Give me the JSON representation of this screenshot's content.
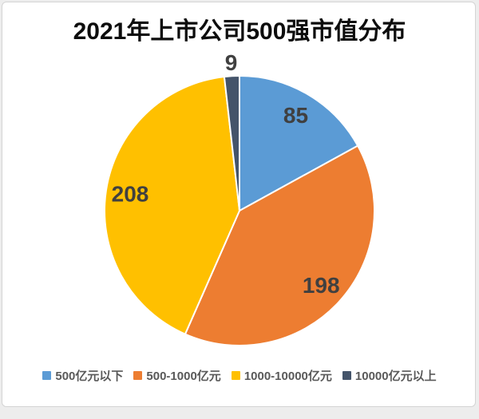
{
  "title": "2021年上市公司500强市值分布",
  "chart_data": {
    "type": "pie",
    "title": "2021年上市公司500强市值分布",
    "total": 500,
    "start_angle_deg": 0,
    "direction": "clockwise",
    "legend_position": "bottom",
    "data_labels_shown": true,
    "slices": [
      {
        "label": "500亿元以下",
        "value": 85,
        "color": "#5B9BD5"
      },
      {
        "label": "500-1000亿元",
        "value": 198,
        "color": "#ED7D31"
      },
      {
        "label": "1000-10000亿元",
        "value": 208,
        "color": "#FFC000"
      },
      {
        "label": "10000亿元以上",
        "value": 9,
        "color": "#44546A"
      }
    ]
  }
}
